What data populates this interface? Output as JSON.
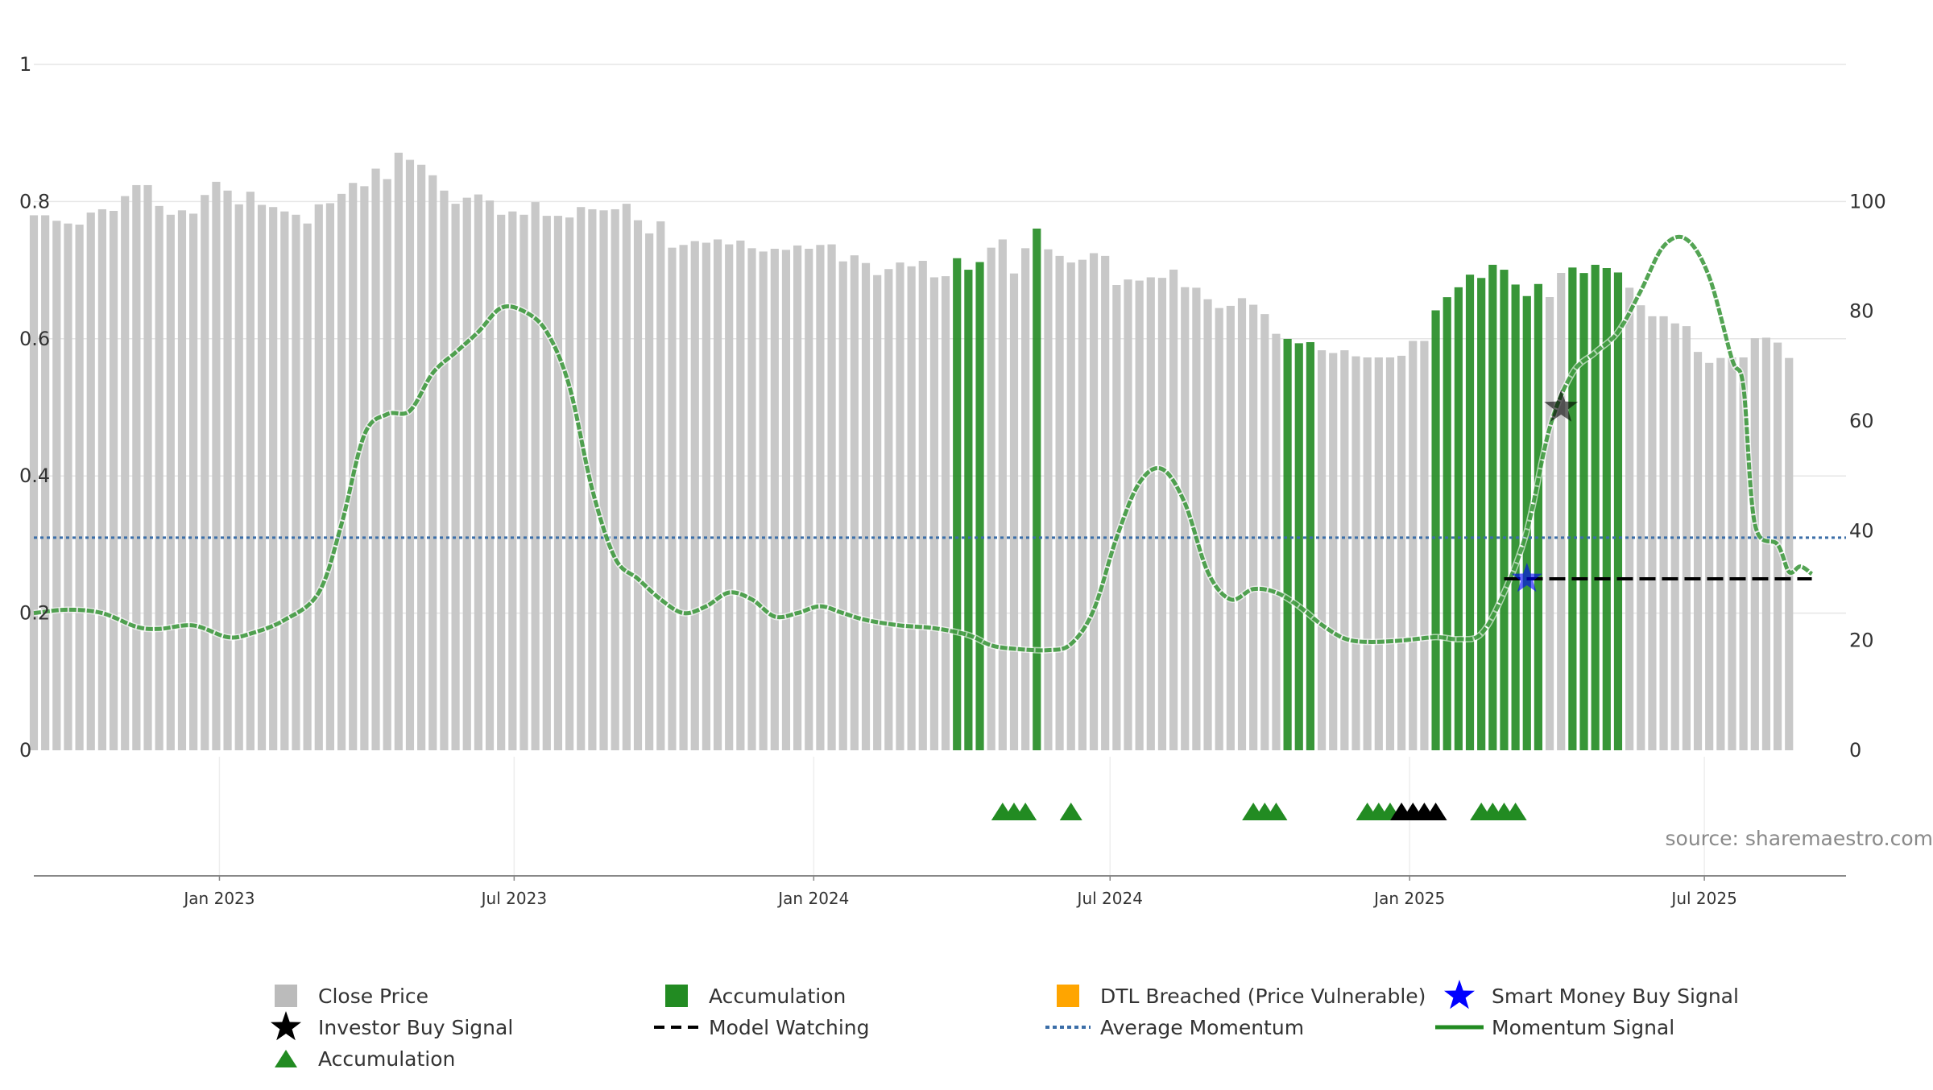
{
  "chart_data": {
    "type": "bar+line",
    "title": "",
    "source": "source: sharemaestro.com",
    "left_axis": {
      "range": [
        0,
        1
      ],
      "ticks": [
        "0",
        "0.2",
        "0.4",
        "0.6",
        "0.8",
        "1"
      ],
      "tick_values": [
        0,
        0.2,
        0.4,
        0.6,
        0.8,
        1
      ]
    },
    "right_axis": {
      "range": [
        0,
        125
      ],
      "ticks": [
        "0",
        "20",
        "40",
        "60",
        "80",
        "100"
      ],
      "tick_values": [
        0,
        20,
        40,
        60,
        80,
        100
      ]
    },
    "x_axis": {
      "range": [
        "2022-09-09",
        "2025-09-26"
      ],
      "tick_labels": [
        "Jan 2023",
        "Jul 2023",
        "Jan 2024",
        "Jul 2024",
        "Jan 2025",
        "Jul 2025"
      ],
      "tick_dates": [
        "2023-01-01",
        "2023-07-01",
        "2024-01-01",
        "2024-07-01",
        "2025-01-01",
        "2025-07-01"
      ]
    },
    "close_price": {
      "start_date": "2022-09-09",
      "interval_days": 7,
      "values": [
        97.5,
        97.5,
        96.5,
        96,
        95.8,
        98,
        98.6,
        98.3,
        101,
        103,
        103,
        99.2,
        97.6,
        98.4,
        97.8,
        101.2,
        103.6,
        102,
        99.5,
        101.8,
        99.4,
        99,
        98.2,
        97.6,
        96,
        99.5,
        99.7,
        101.4,
        103.4,
        102.8,
        106,
        104.1,
        108.9,
        107.6,
        106.7,
        104.8,
        102,
        99.6,
        100.7,
        101.3,
        100.2,
        97.6,
        98.2,
        97.6,
        99.9,
        97.4,
        97.4,
        97.1,
        99,
        98.6,
        98.4,
        98.6,
        99.6,
        96.6,
        94.2,
        96.4,
        91.6,
        92.1,
        92.8,
        92.5,
        93.1,
        92.2,
        92.9,
        91.5,
        90.9,
        91.4,
        91.2,
        92,
        91.4,
        92.1,
        92.2,
        89.1,
        90.2,
        88.8,
        86.6,
        87.7,
        88.9,
        88.2,
        89.2,
        86.2,
        86.4,
        88.8,
        86.7,
        88.1,
        91.6,
        93.1,
        86.9,
        91.5,
        94.2,
        91.3,
        90.1,
        88.9,
        89.4,
        90.6,
        90.1,
        84.8,
        85.8,
        85.6,
        86.2,
        86.1,
        87.6,
        84.4,
        84.3,
        82.2,
        80.6,
        81,
        82.4,
        81.2,
        79.5,
        75.9,
        74.1,
        73.3,
        73.5,
        72.9,
        72.4,
        72.9,
        71.8,
        71.6,
        71.6,
        71.6,
        71.9,
        74.6,
        74.6,
        79.3,
        81.7,
        83.5,
        85.8,
        85.2,
        87.6,
        86.7,
        84,
        81.9,
        84.1,
        82.6,
        87,
        87.1,
        86.1,
        87.6,
        87,
        86.2,
        84.3,
        81.1,
        79.1,
        79.1,
        77.8,
        77.3,
        72.6,
        70.6,
        71.5,
        71.6,
        71.6,
        75.1,
        75.2,
        74.3,
        71.5
      ]
    },
    "accumulation_bars": {
      "color": "#228B22",
      "indices": [
        81,
        82,
        83,
        88,
        110,
        111,
        112,
        123,
        124,
        125,
        126,
        127,
        128,
        129,
        130,
        131,
        132,
        135,
        136,
        137,
        138,
        139
      ]
    },
    "momentum_signal": {
      "color": "#228B22",
      "points": [
        [
          "2022-09-09",
          0.2
        ],
        [
          "2022-09-30",
          0.205
        ],
        [
          "2022-10-21",
          0.2
        ],
        [
          "2022-11-11",
          0.18
        ],
        [
          "2022-11-25",
          0.177
        ],
        [
          "2022-12-16",
          0.182
        ],
        [
          "2023-01-06",
          0.165
        ],
        [
          "2023-01-20",
          0.17
        ],
        [
          "2023-02-10",
          0.19
        ],
        [
          "2023-03-03",
          0.23
        ],
        [
          "2023-03-17",
          0.33
        ],
        [
          "2023-03-31",
          0.46
        ],
        [
          "2023-04-14",
          0.49
        ],
        [
          "2023-04-28",
          0.495
        ],
        [
          "2023-05-12",
          0.55
        ],
        [
          "2023-05-26",
          0.58
        ],
        [
          "2023-06-09",
          0.61
        ],
        [
          "2023-06-23",
          0.645
        ],
        [
          "2023-07-07",
          0.64
        ],
        [
          "2023-07-21",
          0.61
        ],
        [
          "2023-08-04",
          0.53
        ],
        [
          "2023-08-18",
          0.38
        ],
        [
          "2023-09-01",
          0.28
        ],
        [
          "2023-09-15",
          0.25
        ],
        [
          "2023-09-29",
          0.22
        ],
        [
          "2023-10-13",
          0.2
        ],
        [
          "2023-10-27",
          0.21
        ],
        [
          "2023-11-10",
          0.23
        ],
        [
          "2023-11-24",
          0.22
        ],
        [
          "2023-12-08",
          0.195
        ],
        [
          "2023-12-22",
          0.2
        ],
        [
          "2024-01-05",
          0.21
        ],
        [
          "2024-01-19",
          0.2
        ],
        [
          "2024-02-02",
          0.19
        ],
        [
          "2024-02-23",
          0.182
        ],
        [
          "2024-03-15",
          0.178
        ],
        [
          "2024-04-05",
          0.168
        ],
        [
          "2024-04-19",
          0.153
        ],
        [
          "2024-05-03",
          0.148
        ],
        [
          "2024-05-24",
          0.146
        ],
        [
          "2024-06-07",
          0.155
        ],
        [
          "2024-06-21",
          0.205
        ],
        [
          "2024-07-05",
          0.31
        ],
        [
          "2024-07-19",
          0.39
        ],
        [
          "2024-08-02",
          0.41
        ],
        [
          "2024-08-16",
          0.36
        ],
        [
          "2024-08-30",
          0.26
        ],
        [
          "2024-09-13",
          0.22
        ],
        [
          "2024-09-27",
          0.235
        ],
        [
          "2024-10-11",
          0.23
        ],
        [
          "2024-10-25",
          0.21
        ],
        [
          "2024-11-08",
          0.183
        ],
        [
          "2024-11-22",
          0.163
        ],
        [
          "2024-12-06",
          0.158
        ],
        [
          "2024-12-27",
          0.16
        ],
        [
          "2025-01-17",
          0.165
        ],
        [
          "2025-01-31",
          0.162
        ],
        [
          "2025-02-14",
          0.17
        ],
        [
          "2025-02-28",
          0.23
        ],
        [
          "2025-03-14",
          0.32
        ],
        [
          "2025-03-28",
          0.47
        ],
        [
          "2025-04-11",
          0.55
        ],
        [
          "2025-04-25",
          0.58
        ],
        [
          "2025-05-09",
          0.61
        ],
        [
          "2025-05-23",
          0.67
        ],
        [
          "2025-06-06",
          0.735
        ],
        [
          "2025-06-20",
          0.745
        ],
        [
          "2025-07-04",
          0.69
        ],
        [
          "2025-07-18",
          0.57
        ],
        [
          "2025-07-25",
          0.53
        ],
        [
          "2025-08-01",
          0.33
        ],
        [
          "2025-08-15",
          0.3
        ],
        [
          "2025-08-22",
          0.26
        ],
        [
          "2025-08-29",
          0.268
        ],
        [
          "2025-09-05",
          0.257
        ]
      ]
    },
    "average_momentum": {
      "value": 0.31,
      "color": "#3B6EA8"
    },
    "model_watching": {
      "value": 0.25,
      "from": "2025-02-28",
      "to": "2025-09-05",
      "color": "#000000"
    },
    "smart_money_buy_signal": {
      "date": "2025-03-14",
      "value": 0.25,
      "color": "#0000FF"
    },
    "investor_buy_signal": {
      "date": "2025-04-04",
      "value": 0.5,
      "color": "#000000"
    },
    "accumulation_markers_green": [
      "2024-04-26",
      "2024-05-03",
      "2024-05-10",
      "2024-06-07",
      "2024-09-27",
      "2024-10-04",
      "2024-10-11",
      "2024-12-06",
      "2024-12-13",
      "2024-12-20",
      "2025-02-14",
      "2025-02-21",
      "2025-02-28",
      "2025-03-07"
    ],
    "accumulation_markers_black": [
      "2024-12-27",
      "2025-01-03",
      "2025-01-10",
      "2025-01-17"
    ],
    "legend": [
      {
        "label": "Close Price",
        "symbol": "square",
        "color": "#BBBBBB"
      },
      {
        "label": "Accumulation",
        "symbol": "square",
        "color": "#228B22"
      },
      {
        "label": "DTL Breached (Price Vulnerable)",
        "symbol": "square",
        "color": "#FFA500"
      },
      {
        "label": "Smart Money Buy Signal",
        "symbol": "star",
        "color": "#0000FF"
      },
      {
        "label": "Investor Buy Signal",
        "symbol": "star",
        "color": "#000000"
      },
      {
        "label": "Model Watching",
        "symbol": "dash",
        "color": "#000000"
      },
      {
        "label": "Average Momentum",
        "symbol": "dotted",
        "color": "#3B6EA8"
      },
      {
        "label": "Momentum Signal",
        "symbol": "line",
        "color": "#228B22"
      },
      {
        "label": "Accumulation",
        "symbol": "triangle",
        "color": "#228B22"
      }
    ]
  }
}
